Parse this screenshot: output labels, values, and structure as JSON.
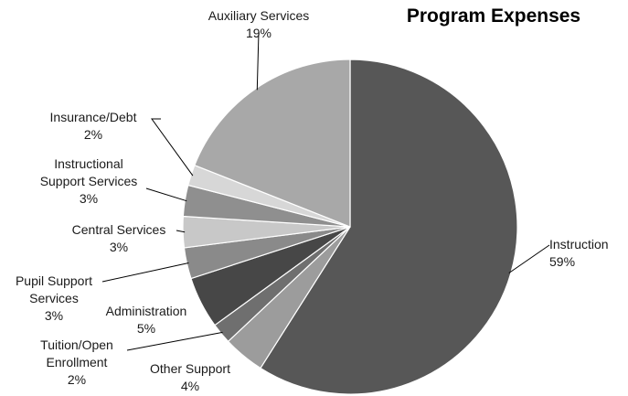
{
  "chart_data": {
    "type": "pie",
    "title": "Program Expenses",
    "slices": [
      {
        "name": "Instruction",
        "percent_label": "59%",
        "value": 59,
        "color": "#575757"
      },
      {
        "name": "Other Support",
        "percent_label": "4%",
        "value": 4,
        "color": "#9c9c9c"
      },
      {
        "name": "Tuition/Open Enrollment",
        "percent_label": "2%",
        "value": 2,
        "color": "#6f6f6f"
      },
      {
        "name": "Administration",
        "percent_label": "5%",
        "value": 5,
        "color": "#474747"
      },
      {
        "name": "Pupil Support Services",
        "percent_label": "3%",
        "value": 3,
        "color": "#8a8a8a"
      },
      {
        "name": "Central Services",
        "percent_label": "3%",
        "value": 3,
        "color": "#c8c8c8"
      },
      {
        "name": "Instructional Support Services",
        "percent_label": "3%",
        "value": 3,
        "color": "#8f8f8f"
      },
      {
        "name": "Insurance/Debt",
        "percent_label": "2%",
        "value": 2,
        "color": "#d7d7d7"
      },
      {
        "name": "Auxiliary Services",
        "percent_label": "19%",
        "value": 19,
        "color": "#a8a8a8"
      }
    ]
  }
}
